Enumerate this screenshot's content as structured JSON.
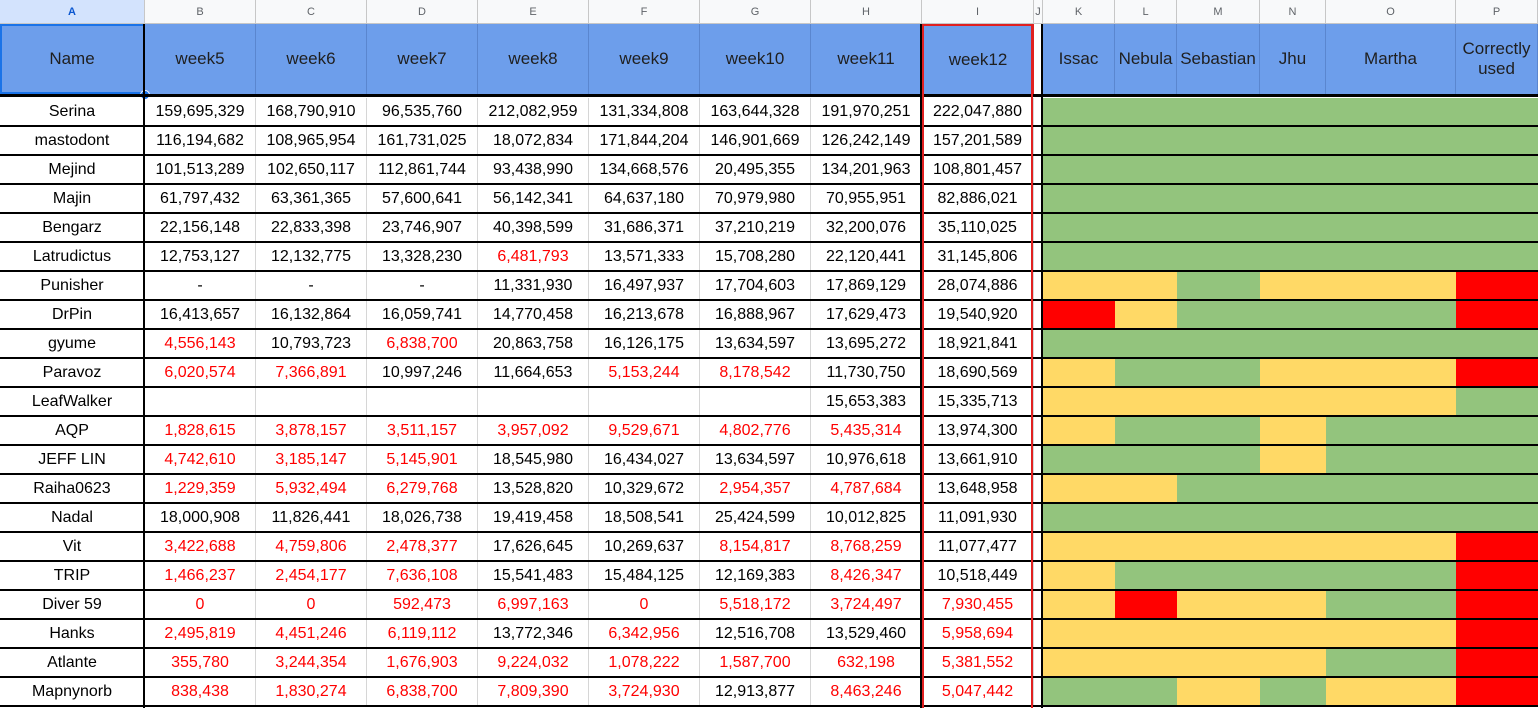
{
  "column_letters": [
    "A",
    "B",
    "C",
    "D",
    "E",
    "F",
    "G",
    "H",
    "I",
    "J",
    "K",
    "L",
    "M",
    "N",
    "O",
    "P"
  ],
  "headers": {
    "name": "Name",
    "weeks": [
      "week5",
      "week6",
      "week7",
      "week8",
      "week9",
      "week10",
      "week11",
      "week12"
    ],
    "evaluators": [
      "Issac",
      "Nebula",
      "Sebastian",
      "Jhu",
      "Martha",
      "Correctly used"
    ]
  },
  "rows": [
    {
      "name": "Serina",
      "values": [
        "159,695,329",
        "168,790,910",
        "96,535,760",
        "212,082,959",
        "131,334,808",
        "163,644,328",
        "191,970,251",
        "222,047,880"
      ],
      "red": [
        0,
        0,
        0,
        0,
        0,
        0,
        0,
        0
      ],
      "status": [
        "g",
        "g",
        "g",
        "g",
        "g",
        "g"
      ]
    },
    {
      "name": "mastodont",
      "values": [
        "116,194,682",
        "108,965,954",
        "161,731,025",
        "18,072,834",
        "171,844,204",
        "146,901,669",
        "126,242,149",
        "157,201,589"
      ],
      "red": [
        0,
        0,
        0,
        0,
        0,
        0,
        0,
        0
      ],
      "status": [
        "g",
        "g",
        "g",
        "g",
        "g",
        "g"
      ]
    },
    {
      "name": "Mejind",
      "values": [
        "101,513,289",
        "102,650,117",
        "112,861,744",
        "93,438,990",
        "134,668,576",
        "20,495,355",
        "134,201,963",
        "108,801,457"
      ],
      "red": [
        0,
        0,
        0,
        0,
        0,
        0,
        0,
        0
      ],
      "status": [
        "g",
        "g",
        "g",
        "g",
        "g",
        "g"
      ]
    },
    {
      "name": "Majin",
      "values": [
        "61,797,432",
        "63,361,365",
        "57,600,641",
        "56,142,341",
        "64,637,180",
        "70,979,980",
        "70,955,951",
        "82,886,021"
      ],
      "red": [
        0,
        0,
        0,
        0,
        0,
        0,
        0,
        0
      ],
      "status": [
        "g",
        "g",
        "g",
        "g",
        "g",
        "g"
      ]
    },
    {
      "name": "Bengarz",
      "values": [
        "22,156,148",
        "22,833,398",
        "23,746,907",
        "40,398,599",
        "31,686,371",
        "37,210,219",
        "32,200,076",
        "35,110,025"
      ],
      "red": [
        0,
        0,
        0,
        0,
        0,
        0,
        0,
        0
      ],
      "status": [
        "g",
        "g",
        "g",
        "g",
        "g",
        "g"
      ]
    },
    {
      "name": "Latrudictus",
      "values": [
        "12,753,127",
        "12,132,775",
        "13,328,230",
        "6,481,793",
        "13,571,333",
        "15,708,280",
        "22,120,441",
        "31,145,806"
      ],
      "red": [
        0,
        0,
        0,
        1,
        0,
        0,
        0,
        0
      ],
      "status": [
        "g",
        "g",
        "g",
        "g",
        "g",
        "g"
      ]
    },
    {
      "name": "Punisher",
      "values": [
        "-",
        "-",
        "-",
        "11,331,930",
        "16,497,937",
        "17,704,603",
        "17,869,129",
        "28,074,886"
      ],
      "red": [
        0,
        0,
        0,
        0,
        0,
        0,
        0,
        0
      ],
      "status": [
        "y",
        "y",
        "g",
        "y",
        "y",
        "r"
      ]
    },
    {
      "name": "DrPin",
      "values": [
        "16,413,657",
        "16,132,864",
        "16,059,741",
        "14,770,458",
        "16,213,678",
        "16,888,967",
        "17,629,473",
        "19,540,920"
      ],
      "red": [
        0,
        0,
        0,
        0,
        0,
        0,
        0,
        0
      ],
      "status": [
        "r",
        "y",
        "g",
        "g",
        "g",
        "r"
      ]
    },
    {
      "name": "gyume",
      "values": [
        "4,556,143",
        "10,793,723",
        "6,838,700",
        "20,863,758",
        "16,126,175",
        "13,634,597",
        "13,695,272",
        "18,921,841"
      ],
      "red": [
        1,
        0,
        1,
        0,
        0,
        0,
        0,
        0
      ],
      "status": [
        "g",
        "g",
        "g",
        "g",
        "g",
        "g"
      ]
    },
    {
      "name": "Paravoz",
      "values": [
        "6,020,574",
        "7,366,891",
        "10,997,246",
        "11,664,653",
        "5,153,244",
        "8,178,542",
        "11,730,750",
        "18,690,569"
      ],
      "red": [
        1,
        1,
        0,
        0,
        1,
        1,
        0,
        0
      ],
      "status": [
        "y",
        "g",
        "g",
        "y",
        "y",
        "r"
      ]
    },
    {
      "name": "LeafWalker",
      "values": [
        "",
        "",
        "",
        "",
        "",
        "",
        "15,653,383",
        "15,335,713"
      ],
      "red": [
        0,
        0,
        0,
        0,
        0,
        0,
        0,
        0
      ],
      "status": [
        "y",
        "y",
        "y",
        "y",
        "y",
        "g"
      ]
    },
    {
      "name": "AQP",
      "values": [
        "1,828,615",
        "3,878,157",
        "3,511,157",
        "3,957,092",
        "9,529,671",
        "4,802,776",
        "5,435,314",
        "13,974,300"
      ],
      "red": [
        1,
        1,
        1,
        1,
        1,
        1,
        1,
        0
      ],
      "status": [
        "y",
        "g",
        "g",
        "y",
        "g",
        "g"
      ]
    },
    {
      "name": "JEFF LIN",
      "values": [
        "4,742,610",
        "3,185,147",
        "5,145,901",
        "18,545,980",
        "16,434,027",
        "13,634,597",
        "10,976,618",
        "13,661,910"
      ],
      "red": [
        1,
        1,
        1,
        0,
        0,
        0,
        0,
        0
      ],
      "status": [
        "g",
        "g",
        "g",
        "y",
        "g",
        "g"
      ]
    },
    {
      "name": "Raiha0623",
      "values": [
        "1,229,359",
        "5,932,494",
        "6,279,768",
        "13,528,820",
        "10,329,672",
        "2,954,357",
        "4,787,684",
        "13,648,958"
      ],
      "red": [
        1,
        1,
        1,
        0,
        0,
        1,
        1,
        0
      ],
      "status": [
        "y",
        "y",
        "g",
        "g",
        "g",
        "g"
      ]
    },
    {
      "name": "Nadal",
      "values": [
        "18,000,908",
        "11,826,441",
        "18,026,738",
        "19,419,458",
        "18,508,541",
        "25,424,599",
        "10,012,825",
        "11,091,930"
      ],
      "red": [
        0,
        0,
        0,
        0,
        0,
        0,
        0,
        0
      ],
      "status": [
        "g",
        "g",
        "g",
        "g",
        "g",
        "g"
      ]
    },
    {
      "name": "Vit",
      "values": [
        "3,422,688",
        "4,759,806",
        "2,478,377",
        "17,626,645",
        "10,269,637",
        "8,154,817",
        "8,768,259",
        "11,077,477"
      ],
      "red": [
        1,
        1,
        1,
        0,
        0,
        1,
        1,
        0
      ],
      "status": [
        "y",
        "y",
        "y",
        "y",
        "y",
        "r"
      ]
    },
    {
      "name": "TRIP",
      "values": [
        "1,466,237",
        "2,454,177",
        "7,636,108",
        "15,541,483",
        "15,484,125",
        "12,169,383",
        "8,426,347",
        "10,518,449"
      ],
      "red": [
        1,
        1,
        1,
        0,
        0,
        0,
        1,
        0
      ],
      "status": [
        "y",
        "g",
        "g",
        "g",
        "g",
        "r"
      ]
    },
    {
      "name": "Diver 59",
      "values": [
        "0",
        "0",
        "592,473",
        "6,997,163",
        "0",
        "5,518,172",
        "3,724,497",
        "7,930,455"
      ],
      "red": [
        1,
        1,
        1,
        1,
        1,
        1,
        1,
        1
      ],
      "status": [
        "y",
        "r",
        "y",
        "y",
        "g",
        "r"
      ]
    },
    {
      "name": "Hanks",
      "values": [
        "2,495,819",
        "4,451,246",
        "6,119,112",
        "13,772,346",
        "6,342,956",
        "12,516,708",
        "13,529,460",
        "5,958,694"
      ],
      "red": [
        1,
        1,
        1,
        0,
        1,
        0,
        0,
        1
      ],
      "status": [
        "y",
        "y",
        "y",
        "y",
        "y",
        "r"
      ]
    },
    {
      "name": "Atlante",
      "values": [
        "355,780",
        "3,244,354",
        "1,676,903",
        "9,224,032",
        "1,078,222",
        "1,587,700",
        "632,198",
        "5,381,552"
      ],
      "red": [
        1,
        1,
        1,
        1,
        1,
        1,
        1,
        1
      ],
      "status": [
        "y",
        "y",
        "y",
        "y",
        "g",
        "r"
      ]
    },
    {
      "name": "Mapnynorb",
      "values": [
        "838,438",
        "1,830,274",
        "6,838,700",
        "7,809,390",
        "3,724,930",
        "12,913,877",
        "8,463,246",
        "5,047,442"
      ],
      "red": [
        1,
        1,
        1,
        1,
        1,
        0,
        1,
        1
      ],
      "status": [
        "g",
        "g",
        "y",
        "g",
        "y",
        "r"
      ]
    }
  ],
  "colors": {
    "header_blue": "#6d9eeb",
    "green": "#93c47d",
    "yellow": "#ffd966",
    "red": "#ff0000",
    "red_text": "#ff0000",
    "highlight_border": "#e02020"
  }
}
